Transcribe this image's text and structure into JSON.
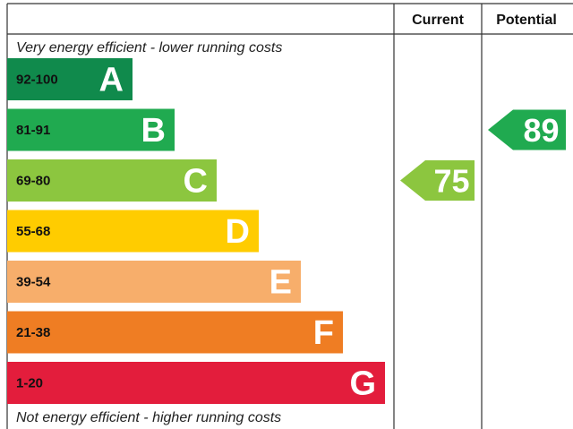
{
  "chart_data": {
    "type": "bar",
    "header": {
      "current": "Current",
      "potential": "Potential"
    },
    "top_note": "Very energy efficient - lower running costs",
    "bottom_note": "Not energy efficient - higher running costs",
    "bands": [
      {
        "range": "92-100",
        "letter": "A",
        "min": 92,
        "max": 100,
        "color": "#108a4c"
      },
      {
        "range": "81-91",
        "letter": "B",
        "min": 81,
        "max": 91,
        "color": "#20aa50"
      },
      {
        "range": "69-80",
        "letter": "C",
        "min": 69,
        "max": 80,
        "color": "#8cc63f"
      },
      {
        "range": "55-68",
        "letter": "D",
        "min": 55,
        "max": 68,
        "color": "#ffcc00"
      },
      {
        "range": "39-54",
        "letter": "E",
        "min": 39,
        "max": 54,
        "color": "#f7ae6b"
      },
      {
        "range": "21-38",
        "letter": "F",
        "min": 21,
        "max": 38,
        "color": "#ef7d23"
      },
      {
        "range": "1-20",
        "letter": "G",
        "min": 1,
        "max": 20,
        "color": "#e31d3c"
      }
    ],
    "current": {
      "value": 75,
      "band": "C",
      "color": "#8cc63f"
    },
    "potential": {
      "value": 89,
      "band": "B",
      "color": "#20aa50"
    }
  }
}
